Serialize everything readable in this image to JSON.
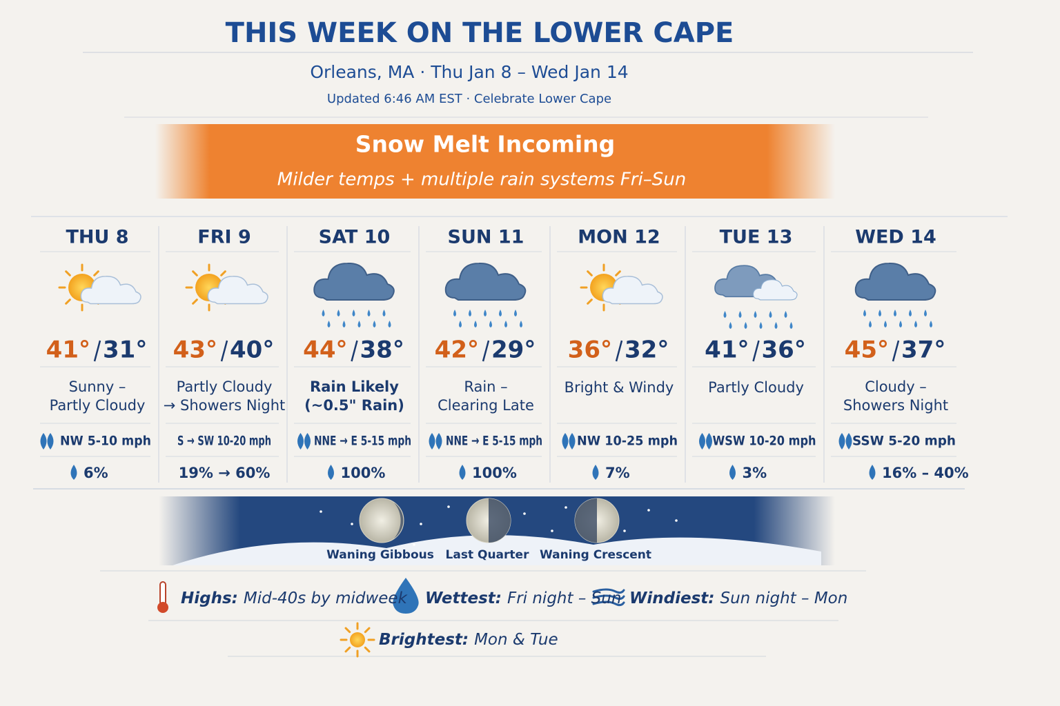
{
  "header": {
    "title": "THIS WEEK ON THE LOWER CAPE",
    "subtitle": "Orleans, MA · Thu Jan 8 – Wed Jan 14",
    "updated": "Updated 6:46 AM EST · Celebrate Lower Cape"
  },
  "banner": {
    "title": "Snow Melt Incoming",
    "subtitle": "Milder temps + multiple rain systems Fri–Sun"
  },
  "days": [
    {
      "day": "THU 8",
      "hi": "41°",
      "lo": "31°",
      "hi_color": "#d2601a",
      "condition": [
        "Sunny –",
        "Partly Cloudy"
      ],
      "wind": "NW 5-10 mph",
      "precip": "6%"
    },
    {
      "day": "FRI 9",
      "hi": "43°",
      "lo": "40°",
      "hi_color": "#d2601a",
      "condition": [
        "Partly Cloudy",
        "→ Showers Night"
      ],
      "wind": "S → SW 10-20 mph",
      "precip": "19% → 60%"
    },
    {
      "day": "SAT 10",
      "hi": "44°",
      "lo": "38°",
      "hi_color": "#d2601a",
      "condition": [
        "Rain Likely",
        "(~0.5\" Rain)"
      ],
      "wind": "NNE → E 5-15 mph",
      "precip": "100%"
    },
    {
      "day": "SUN 11",
      "hi": "42°",
      "lo": "29°",
      "hi_color": "#d2601a",
      "condition": [
        "Rain –",
        "Clearing Late"
      ],
      "wind": "NNE → E 5-15 mph",
      "precip": "100%"
    },
    {
      "day": "MON 12",
      "hi": "36°",
      "lo": "32°",
      "hi_color": "#d2601a",
      "condition": [
        "Bright & Windy"
      ],
      "wind": "NW 10-25 mph",
      "precip": "7%"
    },
    {
      "day": "TUE 13",
      "hi": "41°",
      "lo": "36°",
      "hi_color": "#1b3a6e",
      "condition": [
        "Partly Cloudy"
      ],
      "wind": "WSW 10-20 mph",
      "precip": "3%"
    },
    {
      "day": "WED 14",
      "hi": "45°",
      "lo": "37°",
      "hi_color": "#d2601a",
      "condition": [
        "Cloudy –",
        "Showers Night"
      ],
      "wind": "SSW 5-20 mph",
      "precip": "16% – 40%"
    }
  ],
  "moon": [
    "Waning Gibbous",
    "Last Quarter",
    "Waning Crescent"
  ],
  "summary": [
    {
      "label": "Highs:",
      "text": "Mid-40s by midweek"
    },
    {
      "label": "Wettest:",
      "text": "Fri night – Sun"
    },
    {
      "label": "Windiest:",
      "text": "Sun night – Mon"
    },
    {
      "label": "Brightest:",
      "text": "Mon & Tue"
    }
  ]
}
